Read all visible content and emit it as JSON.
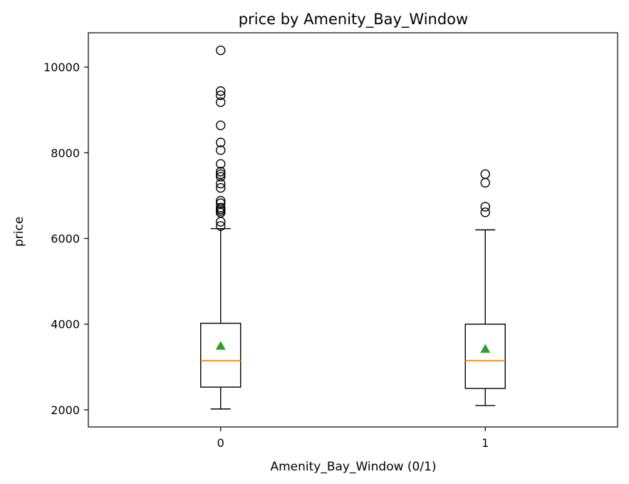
{
  "chart_data": {
    "type": "boxplot",
    "title": "price by Amenity_Bay_Window",
    "xlabel": "Amenity_Bay_Window (0/1)",
    "ylabel": "price",
    "ylim": [
      1600,
      10800
    ],
    "yticks": [
      2000,
      4000,
      6000,
      8000,
      10000
    ],
    "categories": [
      "0",
      "1"
    ],
    "boxes": [
      {
        "category": "0",
        "whisker_low": 2020,
        "q1": 2530,
        "median": 3150,
        "q3": 4020,
        "whisker_high": 6230,
        "mean": 3490,
        "outliers": [
          6290,
          6390,
          6600,
          6640,
          6680,
          6720,
          6820,
          6880,
          7180,
          7280,
          7440,
          7500,
          7560,
          7740,
          8060,
          8240,
          8640,
          9180,
          9340,
          9440,
          10390
        ]
      },
      {
        "category": "1",
        "whisker_low": 2100,
        "q1": 2500,
        "median": 3150,
        "q3": 4000,
        "whisker_high": 6200,
        "mean": 3420,
        "outliers": [
          6610,
          6740,
          7300,
          7500
        ]
      }
    ],
    "colors": {
      "box": "#000000",
      "median": "#ff7f0e",
      "mean": "#2ca02c",
      "outlier": "#000000"
    },
    "grid": false,
    "legend": "none"
  }
}
